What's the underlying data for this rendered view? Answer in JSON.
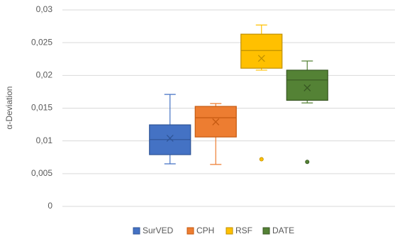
{
  "chart_data": {
    "type": "box",
    "y_label": "α-Deviation",
    "ylim": [
      0,
      0.03
    ],
    "yticks": [
      0,
      {
        "value": 0.005,
        "label": "0,005"
      },
      {
        "value": 0.01,
        "label": "0,01"
      },
      {
        "value": 0.015,
        "label": "0,015"
      },
      {
        "value": 0.02,
        "label": "0,02"
      },
      {
        "value": 0.025,
        "label": "0,025"
      },
      {
        "value": 0.03,
        "label": "0,03"
      }
    ],
    "grid": true,
    "legend": "bottom",
    "series": [
      {
        "name": "SurVED",
        "color": "#4472c4",
        "edge": "#2f5597",
        "min": 0.0065,
        "q1": 0.0079,
        "median": 0.0102,
        "q3": 0.01245,
        "max": 0.0171,
        "mean": 0.0104,
        "outliers": []
      },
      {
        "name": "CPH",
        "color": "#ed7d31",
        "edge": "#c55a11",
        "min": 0.0064,
        "q1": 0.0106,
        "median": 0.01354,
        "q3": 0.01527,
        "max": 0.0157,
        "mean": 0.0129,
        "outliers": []
      },
      {
        "name": "RSF",
        "color": "#ffc000",
        "edge": "#bf9000",
        "min": 0.0208,
        "q1": 0.0211,
        "median": 0.0238,
        "q3": 0.0263,
        "max": 0.0277,
        "mean": 0.0226,
        "outliers": [
          0.0072
        ]
      },
      {
        "name": "DATE",
        "color": "#548235",
        "edge": "#385723",
        "min": 0.0158,
        "q1": 0.0162,
        "median": 0.0193,
        "q3": 0.0208,
        "max": 0.0222,
        "mean": 0.0181,
        "outliers": [
          0.0068
        ]
      }
    ]
  }
}
